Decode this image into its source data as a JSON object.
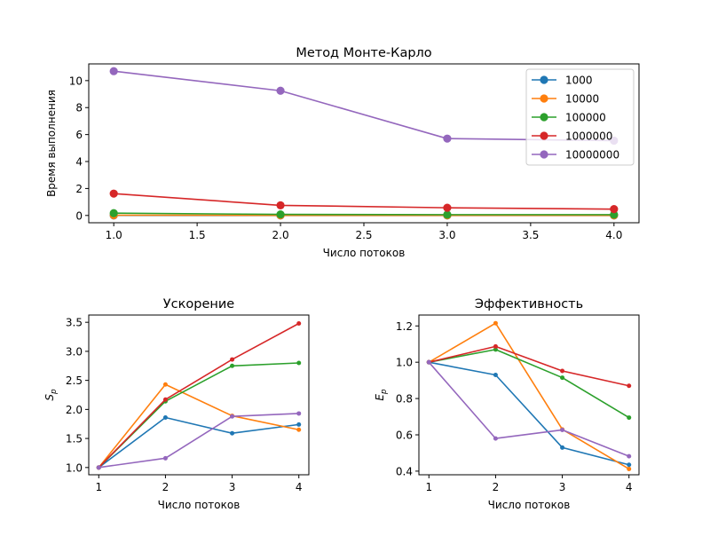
{
  "colors": {
    "series_palette": [
      "#1f77b4",
      "#ff7f0e",
      "#2ca02c",
      "#d62728",
      "#9467bd"
    ],
    "axes": "#000000",
    "legend_border": "#cccccc"
  },
  "chart_data": [
    {
      "type": "line",
      "title": "Метод Монте-Карло",
      "xlabel": "Число потоков",
      "ylabel": "Время выполнения",
      "x": [
        1,
        2,
        3,
        4
      ],
      "xlim": [
        0.85,
        4.15
      ],
      "ylim": [
        -0.54,
        11.24
      ],
      "xticks": [
        1.0,
        1.5,
        2.0,
        2.5,
        3.0,
        3.5,
        4.0
      ],
      "xtick_labels": [
        "1.0",
        "1.5",
        "2.0",
        "2.5",
        "3.0",
        "3.5",
        "4.0"
      ],
      "yticks": [
        0,
        2,
        4,
        6,
        8,
        10
      ],
      "ytick_labels": [
        "0",
        "2",
        "4",
        "6",
        "8",
        "10"
      ],
      "grid": false,
      "legend": "top-right",
      "marker": "large-circle",
      "series": [
        {
          "name": "1000",
          "values": [
            0.002,
            0.001,
            0.001,
            0.001
          ]
        },
        {
          "name": "10000",
          "values": [
            0.02,
            0.01,
            0.01,
            0.01
          ]
        },
        {
          "name": "100000",
          "values": [
            0.17,
            0.08,
            0.06,
            0.06
          ]
        },
        {
          "name": "1000000",
          "values": [
            1.62,
            0.75,
            0.57,
            0.47
          ]
        },
        {
          "name": "10000000",
          "values": [
            10.7,
            9.25,
            5.7,
            5.55
          ]
        }
      ]
    },
    {
      "type": "line",
      "title": "Ускорение",
      "xlabel": "Число потоков",
      "ylabel_main": "S",
      "ylabel_sub": "p",
      "x": [
        1,
        2,
        3,
        4
      ],
      "xlim": [
        0.85,
        4.15
      ],
      "ylim": [
        0.875,
        3.625
      ],
      "xticks": [
        1,
        2,
        3,
        4
      ],
      "xtick_labels": [
        "1",
        "2",
        "3",
        "4"
      ],
      "yticks": [
        1.0,
        1.5,
        2.0,
        2.5,
        3.0,
        3.5
      ],
      "ytick_labels": [
        "1.0",
        "1.5",
        "2.0",
        "2.5",
        "3.0",
        "3.5"
      ],
      "grid": false,
      "marker": "small-circle",
      "series": [
        {
          "values": [
            1.0,
            1.86,
            1.59,
            1.74
          ]
        },
        {
          "values": [
            1.0,
            2.43,
            1.89,
            1.65
          ]
        },
        {
          "values": [
            1.0,
            2.14,
            2.75,
            2.8
          ]
        },
        {
          "values": [
            1.0,
            2.17,
            2.86,
            3.48
          ]
        },
        {
          "values": [
            1.0,
            1.16,
            1.88,
            1.93
          ]
        }
      ]
    },
    {
      "type": "line",
      "title": "Эффективность",
      "xlabel": "Число потоков",
      "ylabel_main": "E",
      "ylabel_sub": "p",
      "x": [
        1,
        2,
        3,
        4
      ],
      "xlim": [
        0.85,
        4.15
      ],
      "ylim": [
        0.38,
        1.26
      ],
      "xticks": [
        1,
        2,
        3,
        4
      ],
      "xtick_labels": [
        "1",
        "2",
        "3",
        "4"
      ],
      "yticks": [
        0.4,
        0.6,
        0.8,
        1.0,
        1.2
      ],
      "ytick_labels": [
        "0.4",
        "0.6",
        "0.8",
        "1.0",
        "1.2"
      ],
      "grid": false,
      "marker": "small-circle",
      "series": [
        {
          "values": [
            1.0,
            0.93,
            0.53,
            0.435
          ]
        },
        {
          "values": [
            1.0,
            1.215,
            0.63,
            0.412
          ]
        },
        {
          "values": [
            1.0,
            1.07,
            0.915,
            0.695
          ]
        },
        {
          "values": [
            1.0,
            1.087,
            0.952,
            0.87
          ]
        },
        {
          "values": [
            1.0,
            0.58,
            0.627,
            0.482
          ]
        }
      ]
    }
  ]
}
